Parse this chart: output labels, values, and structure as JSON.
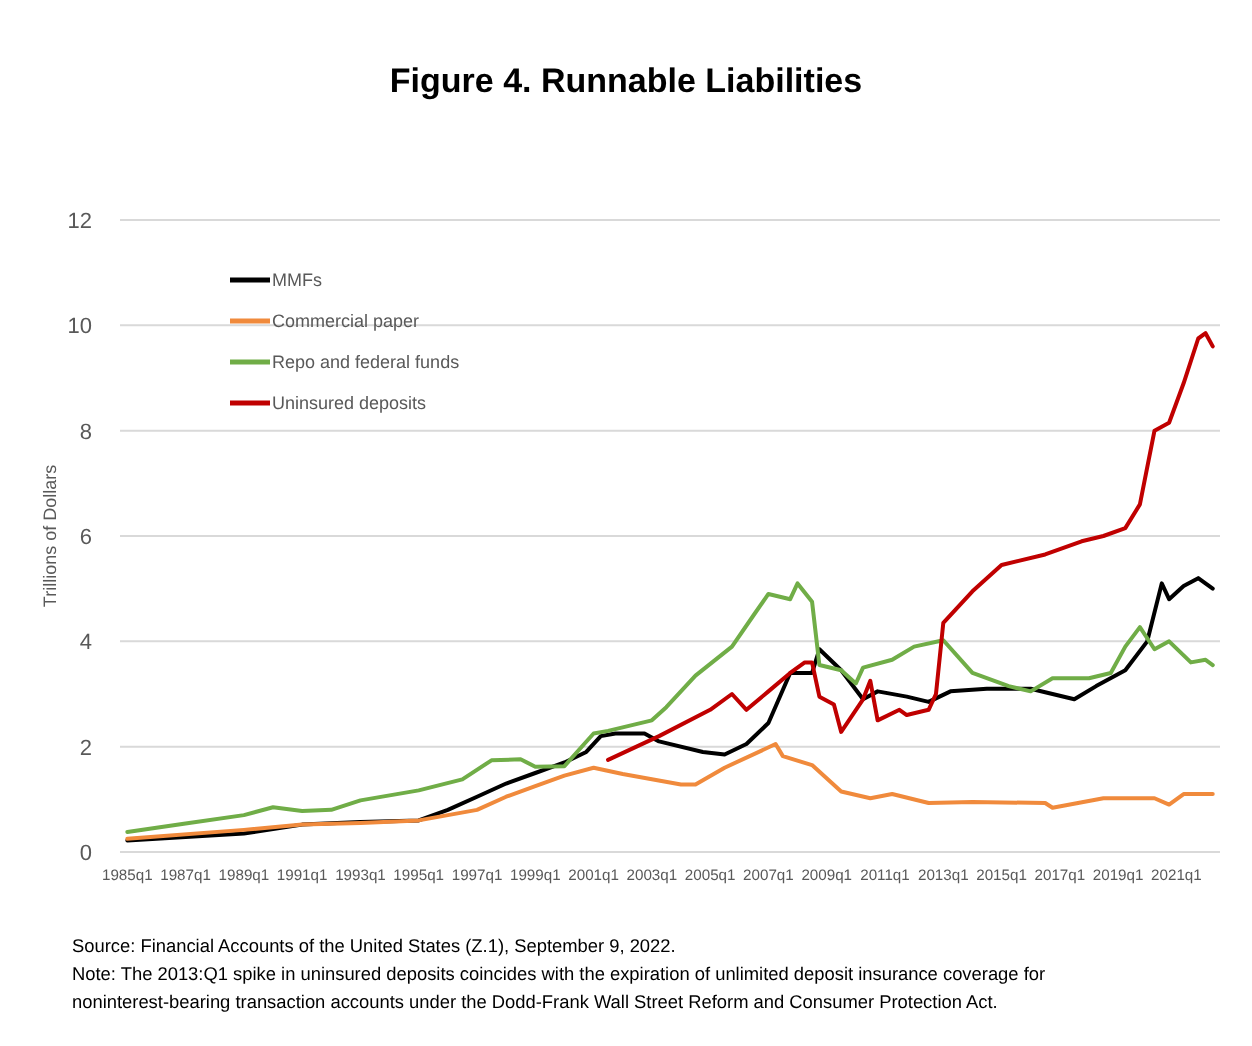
{
  "chart_data": {
    "type": "line",
    "title": "Figure 4. Runnable Liabilities",
    "ylabel": "Trillions of Dollars",
    "xlim": [
      "1984-10",
      "2022-07"
    ],
    "xticks": [
      {
        "value": "1985-01",
        "label": "1985q1"
      },
      {
        "value": "1987-01",
        "label": "1987q1"
      },
      {
        "value": "1989-01",
        "label": "1989q1"
      },
      {
        "value": "1991-01",
        "label": "1991q1"
      },
      {
        "value": "1993-01",
        "label": "1993q1"
      },
      {
        "value": "1995-01",
        "label": "1995q1"
      },
      {
        "value": "1997-01",
        "label": "1997q1"
      },
      {
        "value": "1999-01",
        "label": "1999q1"
      },
      {
        "value": "2001-01",
        "label": "2001q1"
      },
      {
        "value": "2003-01",
        "label": "2003q1"
      },
      {
        "value": "2005-01",
        "label": "2005q1"
      },
      {
        "value": "2007-01",
        "label": "2007q1"
      },
      {
        "value": "2009-01",
        "label": "2009q1"
      },
      {
        "value": "2011-01",
        "label": "2011q1"
      },
      {
        "value": "2013-01",
        "label": "2013q1"
      },
      {
        "value": "2015-01",
        "label": "2015q1"
      },
      {
        "value": "2017-01",
        "label": "2017q1"
      },
      {
        "value": "2019-01",
        "label": "2019q1"
      },
      {
        "value": "2021-01",
        "label": "2021q1"
      }
    ],
    "ylim": [
      0,
      12
    ],
    "yticks": [
      0,
      2,
      4,
      6,
      8,
      10,
      12
    ],
    "grid": "y",
    "legend": "top left",
    "line_style": "solid",
    "marker": "none",
    "series": [
      {
        "name": "MMFs",
        "color": "#000000",
        "x": [
          "1985-01",
          "1989-01",
          "1991-01",
          "1993-01",
          "1995-01",
          "1996-01",
          "1997-01",
          "1998-01",
          "1999-01",
          "2000-01",
          "2000-10",
          "2001-04",
          "2001-10",
          "2002-10",
          "2003-04",
          "2004-10",
          "2005-07",
          "2006-04",
          "2007-01",
          "2007-10",
          "2008-07",
          "2008-10",
          "2009-07",
          "2010-04",
          "2010-10",
          "2011-10",
          "2012-07",
          "2013-04",
          "2014-07",
          "2016-01",
          "2017-07",
          "2018-04",
          "2019-04",
          "2020-01",
          "2020-07",
          "2020-10",
          "2021-04",
          "2021-10",
          "2022-04"
        ],
        "values": [
          0.22,
          0.35,
          0.52,
          0.57,
          0.6,
          0.8,
          1.05,
          1.3,
          1.5,
          1.7,
          1.9,
          2.2,
          2.25,
          2.25,
          2.1,
          1.9,
          1.85,
          2.05,
          2.45,
          3.4,
          3.4,
          3.85,
          3.45,
          2.9,
          3.05,
          2.95,
          2.85,
          3.05,
          3.1,
          3.1,
          2.9,
          3.15,
          3.45,
          4.0,
          5.1,
          4.8,
          5.05,
          5.2,
          5.0
        ]
      },
      {
        "name": "Commercial paper",
        "color": "#f08a3c",
        "x": [
          "1985-01",
          "1989-01",
          "1991-01",
          "1993-01",
          "1995-01",
          "1997-01",
          "1998-01",
          "1999-01",
          "2000-01",
          "2001-01",
          "2002-01",
          "2004-01",
          "2004-07",
          "2005-07",
          "2007-04",
          "2007-07",
          "2008-07",
          "2009-07",
          "2010-07",
          "2011-04",
          "2012-07",
          "2014-01",
          "2016-07",
          "2016-10",
          "2018-07",
          "2020-04",
          "2020-10",
          "2021-04",
          "2022-04"
        ],
        "values": [
          0.25,
          0.42,
          0.52,
          0.55,
          0.6,
          0.8,
          1.05,
          1.25,
          1.45,
          1.6,
          1.48,
          1.28,
          1.28,
          1.6,
          2.05,
          1.82,
          1.65,
          1.15,
          1.02,
          1.1,
          0.93,
          0.95,
          0.93,
          0.84,
          1.02,
          1.02,
          0.9,
          1.1,
          1.1
        ]
      },
      {
        "name": "Repo and federal funds",
        "color": "#70ad47",
        "x": [
          "1985-01",
          "1987-01",
          "1989-01",
          "1990-01",
          "1991-01",
          "1992-01",
          "1993-01",
          "1995-01",
          "1996-07",
          "1997-07",
          "1998-07",
          "1999-01",
          "2000-01",
          "2001-01",
          "2001-07",
          "2003-01",
          "2003-07",
          "2004-07",
          "2005-10",
          "2006-07",
          "2007-01",
          "2007-10",
          "2008-01",
          "2008-07",
          "2008-10",
          "2009-07",
          "2010-01",
          "2010-04",
          "2011-04",
          "2012-01",
          "2013-01",
          "2014-01",
          "2015-04",
          "2016-01",
          "2016-10",
          "2018-01",
          "2018-10",
          "2019-04",
          "2019-10",
          "2020-04",
          "2020-10",
          "2021-07",
          "2022-01",
          "2022-04"
        ],
        "values": [
          0.38,
          0.54,
          0.7,
          0.85,
          0.78,
          0.8,
          0.98,
          1.17,
          1.38,
          1.74,
          1.76,
          1.62,
          1.63,
          2.25,
          2.3,
          2.5,
          2.75,
          3.35,
          3.9,
          4.5,
          4.9,
          4.8,
          5.1,
          4.75,
          3.55,
          3.45,
          3.2,
          3.5,
          3.65,
          3.9,
          4.02,
          3.4,
          3.15,
          3.05,
          3.3,
          3.3,
          3.4,
          3.9,
          4.27,
          3.85,
          4.0,
          3.6,
          3.65,
          3.55
        ]
      },
      {
        "name": "Uninsured deposits",
        "color": "#c00000",
        "x": [
          "2001-07",
          "2003-04",
          "2005-01",
          "2005-10",
          "2006-04",
          "2007-01",
          "2007-10",
          "2008-04",
          "2008-07",
          "2008-10",
          "2009-04",
          "2009-07",
          "2010-04",
          "2010-07",
          "2010-10",
          "2011-07",
          "2011-10",
          "2012-07",
          "2012-10",
          "2013-01",
          "2014-01",
          "2015-01",
          "2016-07",
          "2017-10",
          "2018-07",
          "2019-04",
          "2019-10",
          "2020-04",
          "2020-10",
          "2021-04",
          "2021-10",
          "2022-01",
          "2022-04"
        ],
        "values": [
          1.75,
          2.2,
          2.7,
          3.0,
          2.7,
          3.05,
          3.4,
          3.6,
          3.6,
          2.95,
          2.8,
          2.28,
          2.9,
          3.25,
          2.5,
          2.7,
          2.6,
          2.7,
          3.0,
          4.35,
          4.95,
          5.45,
          5.65,
          5.9,
          6.0,
          6.15,
          6.6,
          8.0,
          8.15,
          8.9,
          9.75,
          9.85,
          9.6
        ]
      }
    ],
    "annotations": [
      "Source: Financial Accounts of the United States (Z.1), September 9, 2022.",
      "Note: The 2013:Q1 spike in uninsured deposits coincides with the expiration of unlimited deposit insurance coverage for noninterest-bearing transaction accounts under the Dodd-Frank Wall Street Reform and Consumer Protection Act."
    ]
  }
}
